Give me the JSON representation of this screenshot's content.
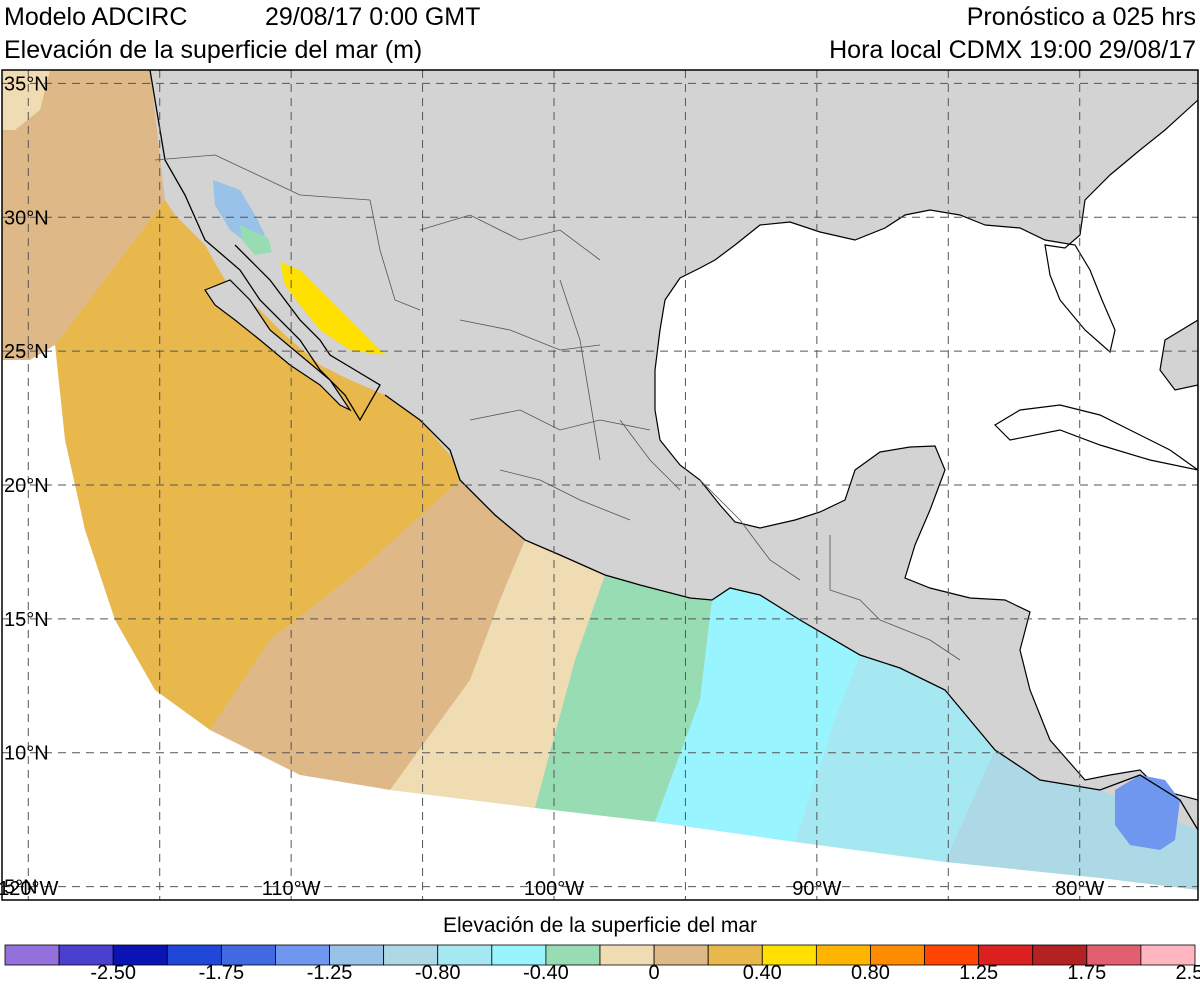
{
  "header": {
    "model": "Modelo ADCIRC",
    "datetime": "29/08/17 0:00 GMT",
    "variable": "Elevación de la superficie del mar (m)",
    "forecast": "Pronóstico a 025 hrs",
    "local_time": "Hora local CDMX 19:00 29/08/17"
  },
  "map": {
    "lon_range": [
      -121,
      -75.5
    ],
    "lat_range": [
      4.5,
      35.5
    ],
    "lat_ticks": [
      {
        "value": 35,
        "label": "35°N"
      },
      {
        "value": 30,
        "label": "30°N"
      },
      {
        "value": 25,
        "label": "25°N"
      },
      {
        "value": 20,
        "label": "20°N"
      },
      {
        "value": 15,
        "label": "15°N"
      },
      {
        "value": 10,
        "label": "10°N"
      },
      {
        "value": 5,
        "label": "5°N"
      }
    ],
    "lon_ticks": [
      {
        "value": -120,
        "label": "120°W"
      },
      {
        "value": -110,
        "label": "110°W"
      },
      {
        "value": -100,
        "label": "100°W"
      },
      {
        "value": -90,
        "label": "90°W"
      },
      {
        "value": -80,
        "label": "80°W"
      }
    ],
    "grid": "dashed, every 5°",
    "land_color": "#d3d3d3",
    "ocean_outside_domain_color": "#ffffff"
  },
  "colorbar": {
    "title": "Elevación de la superficie del mar",
    "colors": [
      "#9370db",
      "#4b3fd0",
      "#0a14b4",
      "#2048d8",
      "#4169e1",
      "#6f97ef",
      "#98c2e8",
      "#add8e6",
      "#a5e8f2",
      "#98f5ff",
      "#98dcb4",
      "#efdcb2",
      "#deb887",
      "#e8b84d",
      "#ffe000",
      "#ffb400",
      "#ff8c00",
      "#ff4500",
      "#dc2020",
      "#b22222",
      "#e06070",
      "#ffb6c1"
    ],
    "labels": [
      "-2.50",
      "-1.75",
      "-1.25",
      "-0.80",
      "-0.40",
      "0",
      "0.40",
      "0.80",
      "1.25",
      "1.75",
      "2.50"
    ]
  }
}
